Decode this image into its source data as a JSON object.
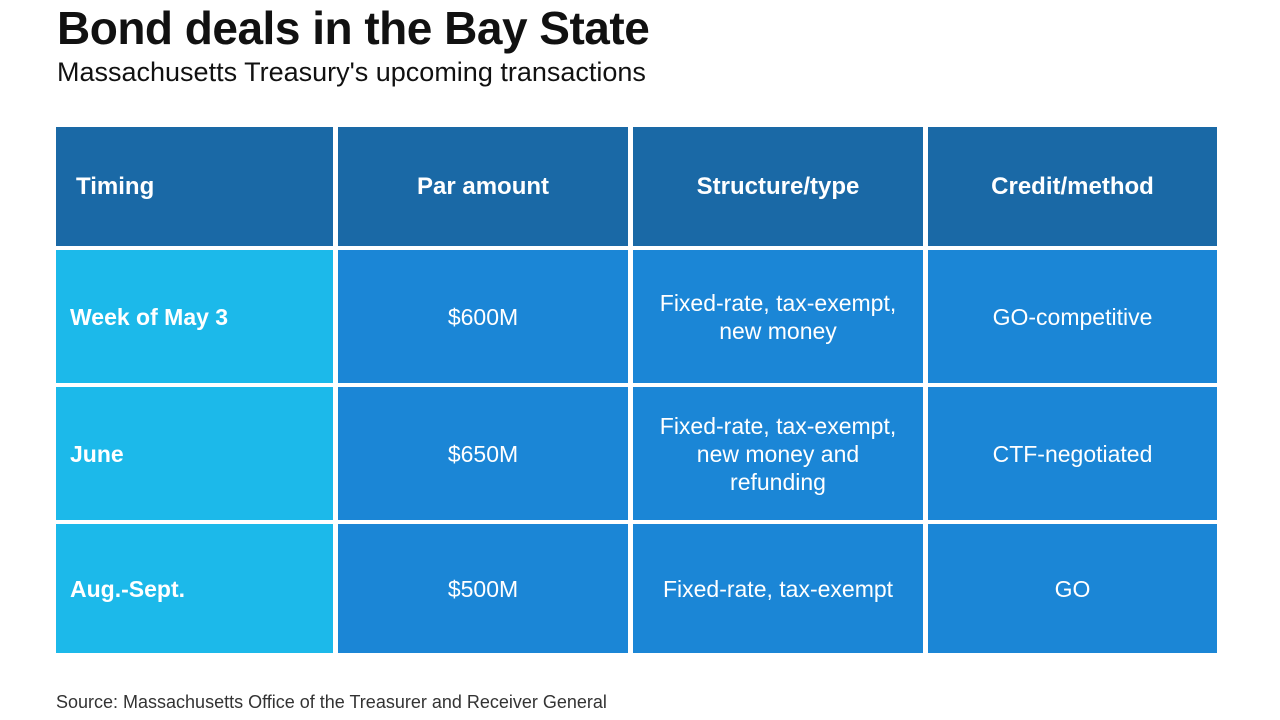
{
  "colors": {
    "header_bg": "#1a69a6",
    "timing_bg": "#1cb9ea",
    "body_bg": "#1b86d6",
    "text_on_blue": "#ffffff"
  },
  "chart_data": {
    "type": "table",
    "title": "Bond deals in the Bay State",
    "subtitle": "Massachusetts Treasury's upcoming transactions",
    "columns": [
      "Timing",
      "Par amount",
      "Structure/type",
      "Credit/method"
    ],
    "rows": [
      {
        "timing": "Week of May 3",
        "par_amount": "$600M",
        "structure": [
          "Fixed-rate, tax-exempt,",
          "new money"
        ],
        "credit": "GO-competitive"
      },
      {
        "timing": "June",
        "par_amount": "$650M",
        "structure": [
          "Fixed-rate, tax-exempt,",
          "new money and",
          "refunding"
        ],
        "credit": "CTF-negotiated"
      },
      {
        "timing": "Aug.-Sept.",
        "par_amount": "$500M",
        "structure": [
          "Fixed-rate, tax-exempt"
        ],
        "credit": "GO"
      }
    ],
    "source": "Source: Massachusetts Office of the Treasurer and Receiver General"
  }
}
